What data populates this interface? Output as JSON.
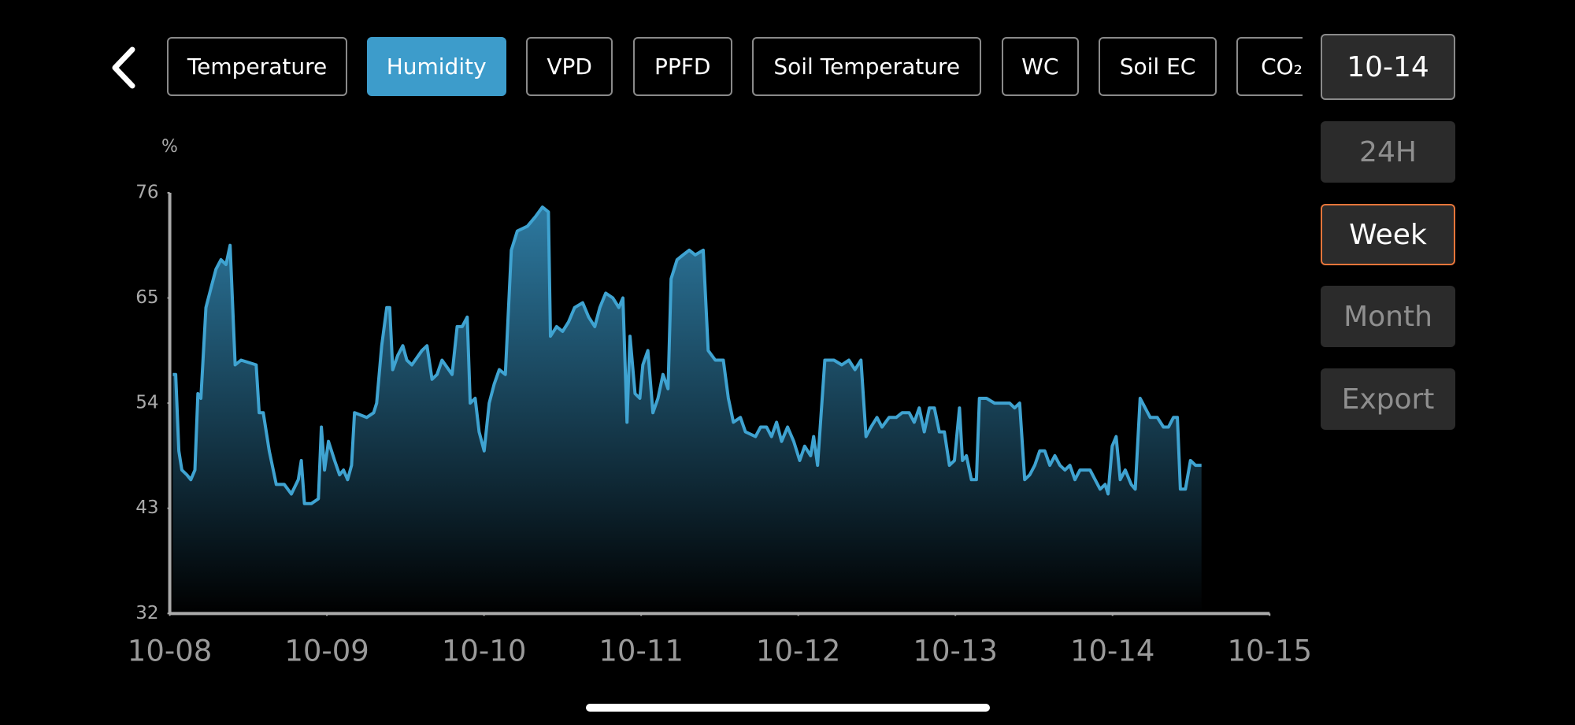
{
  "tabs": [
    "Temperature",
    "Humidity",
    "VPD",
    "PPFD",
    "Soil Temperature",
    "WC",
    "Soil EC",
    "CO₂"
  ],
  "selected_tab": 1,
  "range_buttons": [
    "10-14",
    "24H",
    "Week",
    "Month",
    "Export"
  ],
  "active_range": 2,
  "chart_data": {
    "type": "area",
    "y_unit": "%",
    "xlim": [
      0,
      7
    ],
    "xticks": [
      {
        "value": 0,
        "label": "10-08"
      },
      {
        "value": 1,
        "label": "10-09"
      },
      {
        "value": 2,
        "label": "10-10"
      },
      {
        "value": 3,
        "label": "10-11"
      },
      {
        "value": 4,
        "label": "10-12"
      },
      {
        "value": 5,
        "label": "10-13"
      },
      {
        "value": 6,
        "label": "10-14"
      },
      {
        "value": 7,
        "label": "10-15"
      }
    ],
    "ylim": [
      32,
      76
    ],
    "yticks": [
      32,
      43,
      54,
      65,
      76
    ],
    "x": [
      0.019,
      0.038,
      0.058,
      0.077,
      0.109,
      0.134,
      0.16,
      0.179,
      0.198,
      0.23,
      0.262,
      0.294,
      0.326,
      0.358,
      0.384,
      0.416,
      0.454,
      0.55,
      0.569,
      0.595,
      0.633,
      0.678,
      0.729,
      0.774,
      0.818,
      0.837,
      0.857,
      0.902,
      0.946,
      0.965,
      0.985,
      1.01,
      1.049,
      1.081,
      1.106,
      1.132,
      1.157,
      1.176,
      1.253,
      1.298,
      1.317,
      1.349,
      1.381,
      1.4,
      1.419,
      1.451,
      1.483,
      1.509,
      1.541,
      1.605,
      1.637,
      1.669,
      1.701,
      1.733,
      1.797,
      1.829,
      1.861,
      1.893,
      1.912,
      1.944,
      1.969,
      2.001,
      2.033,
      2.065,
      2.097,
      2.136,
      2.174,
      2.212,
      2.276,
      2.327,
      2.372,
      2.41,
      2.423,
      2.462,
      2.5,
      2.538,
      2.577,
      2.628,
      2.666,
      2.705,
      2.737,
      2.775,
      2.82,
      2.858,
      2.884,
      2.91,
      2.929,
      2.961,
      2.992,
      3.011,
      3.043,
      3.075,
      3.107,
      3.139,
      3.171,
      3.191,
      3.229,
      3.267,
      3.306,
      3.344,
      3.395,
      3.427,
      3.472,
      3.523,
      3.555,
      3.587,
      3.632,
      3.664,
      3.728,
      3.76,
      3.798,
      3.83,
      3.862,
      3.894,
      3.932,
      3.971,
      4.009,
      4.041,
      4.079,
      4.098,
      4.123,
      4.169,
      4.227,
      4.277,
      4.322,
      4.361,
      4.399,
      4.431,
      4.463,
      4.501,
      4.533,
      4.578,
      4.623,
      4.661,
      4.706,
      4.738,
      4.77,
      4.802,
      4.834,
      4.866,
      4.898,
      4.93,
      4.962,
      4.994,
      5.026,
      5.045,
      5.07,
      5.102,
      5.134,
      5.153,
      5.198,
      5.249,
      5.301,
      5.345,
      5.377,
      5.409,
      5.441,
      5.473,
      5.505,
      5.537,
      5.569,
      5.601,
      5.633,
      5.665,
      5.697,
      5.729,
      5.761,
      5.793,
      5.825,
      5.857,
      5.889,
      5.921,
      5.953,
      5.972,
      5.998,
      6.023,
      6.049,
      6.081,
      6.119,
      6.145,
      6.176,
      6.208,
      6.24,
      6.285,
      6.324,
      6.356,
      6.388,
      6.413,
      6.432,
      6.464,
      6.496,
      6.528,
      6.566
    ],
    "series": [
      {
        "color": "#3fa3d1",
        "values": [
          57,
          57,
          49,
          47,
          46.5,
          46,
          47,
          55,
          54.5,
          64,
          66,
          68,
          69,
          68.5,
          70.5,
          58,
          58.5,
          58,
          53,
          53,
          49,
          45.5,
          45.5,
          44.5,
          46,
          48,
          43.5,
          43.5,
          44,
          51.5,
          47,
          50,
          48,
          46.5,
          47,
          46,
          47.5,
          53,
          52.5,
          53,
          54,
          60,
          64,
          64,
          57.5,
          59,
          60,
          58.5,
          58,
          59.5,
          60,
          56.5,
          57,
          58.5,
          57,
          62,
          62,
          63,
          54,
          54.5,
          51,
          49,
          54,
          56,
          57.5,
          57,
          70,
          72,
          72.5,
          73.5,
          74.5,
          74,
          61,
          62,
          61.5,
          62.5,
          64,
          64.5,
          63,
          62,
          64,
          65.5,
          65,
          64,
          65,
          52,
          61,
          55,
          54.5,
          58,
          59.5,
          53,
          54.5,
          57,
          55.5,
          67,
          69,
          69.5,
          70,
          69.5,
          70,
          59.5,
          58.5,
          58.5,
          54.5,
          52,
          52.5,
          51,
          50.5,
          51.5,
          51.5,
          50.5,
          52,
          50,
          51.5,
          50,
          48,
          49.5,
          48.5,
          50.5,
          47.5,
          58.5,
          58.5,
          58,
          58.5,
          57.5,
          58.5,
          50.5,
          51.5,
          52.5,
          51.5,
          52.5,
          52.5,
          53,
          53,
          52,
          53.5,
          51,
          53.5,
          53.5,
          51,
          51,
          47.5,
          48,
          53.5,
          48,
          48.5,
          46,
          46,
          54.5,
          54.5,
          54,
          54,
          54,
          53.5,
          54,
          46,
          46.5,
          47.5,
          49,
          49,
          47.5,
          48.5,
          47.5,
          47,
          47.5,
          46,
          47,
          47,
          47,
          46,
          45,
          45.5,
          44.5,
          49.5,
          50.5,
          46,
          47,
          45.5,
          45,
          54.5,
          53.5,
          52.5,
          52.5,
          51.5,
          51.5,
          52.5,
          52.5,
          45,
          45,
          48,
          47.5,
          47.5
        ]
      }
    ]
  }
}
